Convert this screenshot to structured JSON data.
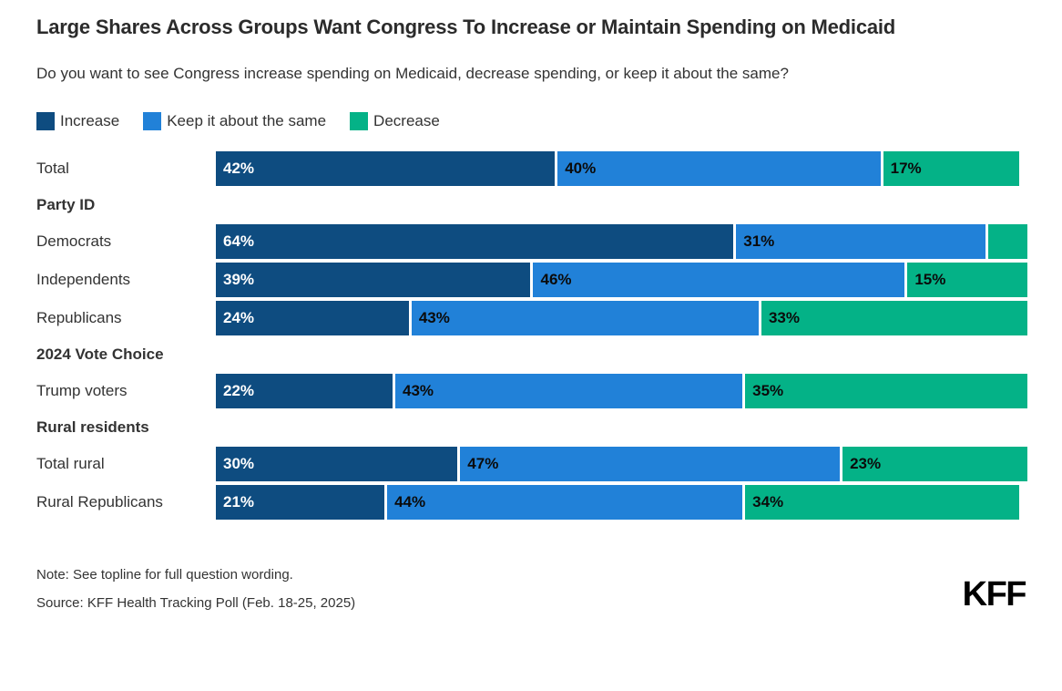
{
  "title": "Large Shares Across Groups Want Congress To Increase or Maintain Spending on Medicaid",
  "subtitle": "Do you want to see Congress increase spending on Medicaid, decrease spending, or keep it about the same?",
  "legend": [
    {
      "label": "Increase",
      "color": "#0E4C80"
    },
    {
      "label": "Keep it about the same",
      "color": "#2181D8"
    },
    {
      "label": "Decrease",
      "color": "#04B287"
    }
  ],
  "chart_data": {
    "type": "bar",
    "stacked": true,
    "orientation": "horizontal",
    "unit": "%",
    "xlim": [
      0,
      100
    ],
    "grid": false,
    "legend_position": "top",
    "series_names": [
      "Increase",
      "Keep it about the same",
      "Decrease"
    ],
    "rows": [
      {
        "kind": "bar",
        "label": "Total",
        "values": [
          42,
          40,
          17
        ],
        "value_labels": [
          "42%",
          "40%",
          "17%"
        ]
      },
      {
        "kind": "section",
        "label": "Party ID"
      },
      {
        "kind": "bar",
        "label": "Democrats",
        "values": [
          64,
          31,
          5
        ],
        "value_labels": [
          "64%",
          "31%",
          ""
        ]
      },
      {
        "kind": "bar",
        "label": "Independents",
        "values": [
          39,
          46,
          15
        ],
        "value_labels": [
          "39%",
          "46%",
          "15%"
        ]
      },
      {
        "kind": "bar",
        "label": "Republicans",
        "values": [
          24,
          43,
          33
        ],
        "value_labels": [
          "24%",
          "43%",
          "33%"
        ]
      },
      {
        "kind": "section",
        "label": "2024 Vote Choice"
      },
      {
        "kind": "bar",
        "label": "Trump voters",
        "values": [
          22,
          43,
          35
        ],
        "value_labels": [
          "22%",
          "43%",
          "35%"
        ]
      },
      {
        "kind": "section",
        "label": "Rural residents"
      },
      {
        "kind": "bar",
        "label": "Total rural",
        "values": [
          30,
          47,
          23
        ],
        "value_labels": [
          "30%",
          "47%",
          "23%"
        ]
      },
      {
        "kind": "bar",
        "label": "Rural Republicans",
        "values": [
          21,
          44,
          34
        ],
        "value_labels": [
          "21%",
          "44%",
          "34%"
        ]
      }
    ]
  },
  "note": "Note: See topline for full question wording.",
  "source": "Source: KFF Health Tracking Poll (Feb. 18-25, 2025)",
  "logo": "KFF"
}
